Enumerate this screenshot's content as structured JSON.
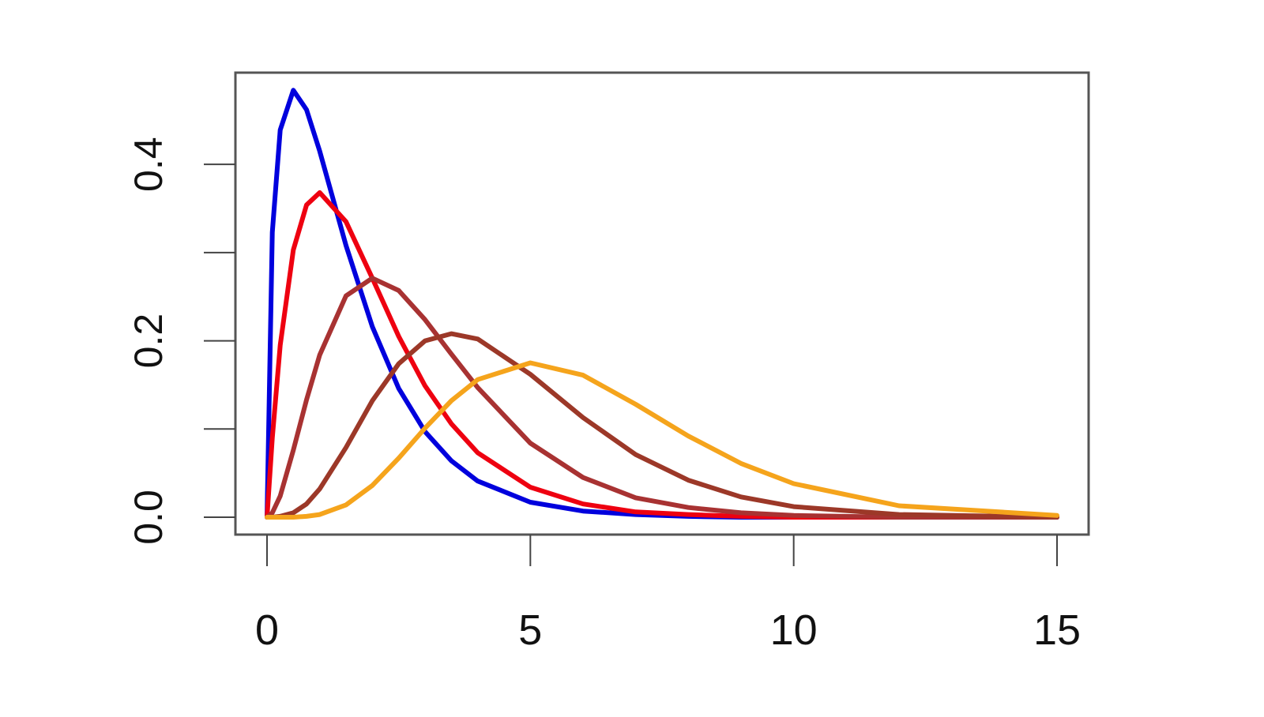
{
  "chart_data": {
    "type": "line",
    "x": [
      0,
      0.1,
      0.25,
      0.5,
      0.75,
      1,
      1.5,
      2,
      2.5,
      3,
      3.5,
      4,
      5,
      6,
      7,
      8,
      9,
      10,
      12,
      15
    ],
    "series": [
      {
        "color": "#0000dd",
        "values": [
          0,
          0.323,
          0.439,
          0.484,
          0.462,
          0.415,
          0.308,
          0.216,
          0.146,
          0.097,
          0.064,
          0.041,
          0.017,
          0.007,
          0.003,
          0.001,
          0,
          0,
          0,
          0
        ]
      },
      {
        "color": "#ee0010",
        "values": [
          0,
          0.09,
          0.195,
          0.303,
          0.354,
          0.368,
          0.335,
          0.271,
          0.205,
          0.149,
          0.106,
          0.073,
          0.034,
          0.015,
          0.006,
          0.003,
          0.001,
          0,
          0,
          0
        ]
      },
      {
        "color": "#a83232",
        "values": [
          0,
          0.005,
          0.024,
          0.076,
          0.133,
          0.184,
          0.251,
          0.271,
          0.257,
          0.224,
          0.185,
          0.147,
          0.084,
          0.045,
          0.022,
          0.011,
          0.005,
          0.002,
          0,
          0
        ]
      },
      {
        "color": "#9c3828",
        "values": [
          0,
          0,
          0.001,
          0.005,
          0.015,
          0.032,
          0.079,
          0.132,
          0.174,
          0.2,
          0.208,
          0.202,
          0.162,
          0.113,
          0.071,
          0.042,
          0.023,
          0.012,
          0.003,
          0
        ]
      },
      {
        "color": "#f5a41c",
        "values": [
          0,
          0,
          0,
          0,
          0.001,
          0.003,
          0.014,
          0.036,
          0.067,
          0.101,
          0.132,
          0.156,
          0.175,
          0.161,
          0.128,
          0.092,
          0.061,
          0.038,
          0.013,
          0.002
        ]
      }
    ],
    "xlim": [
      -0.6,
      15.6
    ],
    "ylim": [
      -0.0197,
      0.504
    ],
    "xticks": [
      0,
      5,
      10,
      15
    ],
    "yticks": [
      {
        "value": 0,
        "label": "0.0"
      },
      {
        "value": 0.1,
        "label": null
      },
      {
        "value": 0.2,
        "label": "0.2"
      },
      {
        "value": 0.3,
        "label": null
      },
      {
        "value": 0.4,
        "label": "0.4"
      }
    ]
  }
}
